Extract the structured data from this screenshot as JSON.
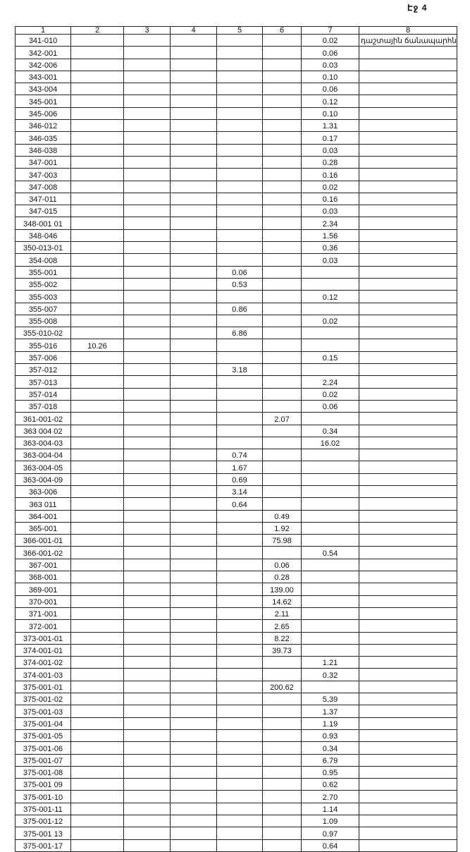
{
  "page_label": "Էջ 4",
  "table": {
    "headers": [
      "1",
      "2",
      "3",
      "4",
      "5",
      "6",
      "7",
      "8"
    ],
    "rows": [
      [
        "341-010",
        "",
        "",
        "",
        "",
        "",
        "0.02",
        "դաշտային ճանապարհն"
      ],
      [
        "342-001",
        "",
        "",
        "",
        "",
        "",
        "0.06",
        ""
      ],
      [
        "342-006",
        "",
        "",
        "",
        "",
        "",
        "0.03",
        ""
      ],
      [
        "343-001",
        "",
        "",
        "",
        "",
        "",
        "0.10",
        ""
      ],
      [
        "343-004",
        "",
        "",
        "",
        "",
        "",
        "0.06",
        ""
      ],
      [
        "345-001",
        "",
        "",
        "",
        "",
        "",
        "0.12",
        ""
      ],
      [
        "345-006",
        "",
        "",
        "",
        "",
        "",
        "0.10",
        ""
      ],
      [
        "346-012",
        "",
        "",
        "",
        "",
        "",
        "1.31",
        ""
      ],
      [
        "346-035",
        "",
        "",
        "",
        "",
        "",
        "0.17",
        ""
      ],
      [
        "346-038",
        "",
        "",
        "",
        "",
        "",
        "0.03",
        ""
      ],
      [
        "347-001",
        "",
        "",
        "",
        "",
        "",
        "0.28",
        ""
      ],
      [
        "347-003",
        "",
        "",
        "",
        "",
        "",
        "0.16",
        ""
      ],
      [
        "347-008",
        "",
        "",
        "",
        "",
        "",
        "0.02",
        ""
      ],
      [
        "347-011",
        "",
        "",
        "",
        "",
        "",
        "0.16",
        ""
      ],
      [
        "347-015",
        "",
        "",
        "",
        "",
        "",
        "0.03",
        ""
      ],
      [
        "348-001 01",
        "",
        "",
        "",
        "",
        "",
        "2.34",
        ""
      ],
      [
        "348-046",
        "",
        "",
        "",
        "",
        "",
        "1.56",
        ""
      ],
      [
        "350-013-01",
        "",
        "",
        "",
        "",
        "",
        "0.36",
        ""
      ],
      [
        "354-008",
        "",
        "",
        "",
        "",
        "",
        "0.03",
        ""
      ],
      [
        "355-001",
        "",
        "",
        "",
        "0.06",
        "",
        "",
        ""
      ],
      [
        "355-002",
        "",
        "",
        "",
        "0.53",
        "",
        "",
        ""
      ],
      [
        "355-003",
        "",
        "",
        "",
        "",
        "",
        "0.12",
        ""
      ],
      [
        "355-007",
        "",
        "",
        "",
        "0.86",
        "",
        "",
        ""
      ],
      [
        "355-008",
        "",
        "",
        "",
        "",
        "",
        "0.02",
        ""
      ],
      [
        "355-010-02",
        "",
        "",
        "",
        "6.86",
        "",
        "",
        ""
      ],
      [
        "355-016",
        "10.26",
        "",
        "",
        "",
        "",
        "",
        ""
      ],
      [
        "357-006",
        "",
        "",
        "",
        "",
        "",
        "0.15",
        ""
      ],
      [
        "357-012",
        "",
        "",
        "",
        "3.18",
        "",
        "",
        ""
      ],
      [
        "357-013",
        "",
        "",
        "",
        "",
        "",
        "2.24",
        ""
      ],
      [
        "357-014",
        "",
        "",
        "",
        "",
        "",
        "0.02",
        ""
      ],
      [
        "357-018",
        "",
        "",
        "",
        "",
        "",
        "0.06",
        ""
      ],
      [
        "361-001-02",
        "",
        "",
        "",
        "",
        "2.07",
        "",
        ""
      ],
      [
        "363 004 02",
        "",
        "",
        "",
        "",
        "",
        "0.34",
        ""
      ],
      [
        "363-004-03",
        "",
        "",
        "",
        "",
        "",
        "16.02",
        ""
      ],
      [
        "363-004-04",
        "",
        "",
        "",
        "0.74",
        "",
        "",
        ""
      ],
      [
        "363-004-05",
        "",
        "",
        "",
        "1.67",
        "",
        "",
        ""
      ],
      [
        "363-004-09",
        "",
        "",
        "",
        "0.69",
        "",
        "",
        ""
      ],
      [
        "363-006",
        "",
        "",
        "",
        "3.14",
        "",
        "",
        ""
      ],
      [
        "363 011",
        "",
        "",
        "",
        "0.64",
        "",
        "",
        ""
      ],
      [
        "364-001",
        "",
        "",
        "",
        "",
        "0.49",
        "",
        ""
      ],
      [
        "365-001",
        "",
        "",
        "",
        "",
        "1.92",
        "",
        ""
      ],
      [
        "366-001-01",
        "",
        "",
        "",
        "",
        "75.98",
        "",
        ""
      ],
      [
        "366-001-02",
        "",
        "",
        "",
        "",
        "",
        "0.54",
        ""
      ],
      [
        "367-001",
        "",
        "",
        "",
        "",
        "0.06",
        "",
        ""
      ],
      [
        "368-001",
        "",
        "",
        "",
        "",
        "0.28",
        "",
        ""
      ],
      [
        "369-001",
        "",
        "",
        "",
        "",
        "139.00",
        "",
        ""
      ],
      [
        "370-001",
        "",
        "",
        "",
        "",
        "14.62",
        "",
        ""
      ],
      [
        "371-001",
        "",
        "",
        "",
        "",
        "2.11",
        "",
        ""
      ],
      [
        "372-001",
        "",
        "",
        "",
        "",
        "2.65",
        "",
        ""
      ],
      [
        "373-001-01",
        "",
        "",
        "",
        "",
        "8.22",
        "",
        ""
      ],
      [
        "374-001-01",
        "",
        "",
        "",
        "",
        "39.73",
        "",
        ""
      ],
      [
        "374-001-02",
        "",
        "",
        "",
        "",
        "",
        "1.21",
        ""
      ],
      [
        "374-001-03",
        "",
        "",
        "",
        "",
        "",
        "0.32",
        ""
      ],
      [
        "375-001-01",
        "",
        "",
        "",
        "",
        "200.62",
        "",
        ""
      ],
      [
        "375-001-02",
        "",
        "",
        "",
        "",
        "",
        "5.39",
        ""
      ],
      [
        "375-001-03",
        "",
        "",
        "",
        "",
        "",
        "1.37",
        ""
      ],
      [
        "375-001-04",
        "",
        "",
        "",
        "",
        "",
        "1.19",
        ""
      ],
      [
        "375-001-05",
        "",
        "",
        "",
        "",
        "",
        "0.93",
        ""
      ],
      [
        "375-001-06",
        "",
        "",
        "",
        "",
        "",
        "0.34",
        ""
      ],
      [
        "375-001-07",
        "",
        "",
        "",
        "",
        "",
        "6.79",
        ""
      ],
      [
        "375-001-08",
        "",
        "",
        "",
        "",
        "",
        "0.95",
        ""
      ],
      [
        "375-001 09",
        "",
        "",
        "",
        "",
        "",
        "0.62",
        ""
      ],
      [
        "375-001-10",
        "",
        "",
        "",
        "",
        "",
        "2.70",
        ""
      ],
      [
        "375-001-11",
        "",
        "",
        "",
        "",
        "",
        "1.14",
        ""
      ],
      [
        "375-001-12",
        "",
        "",
        "",
        "",
        "",
        "1.09",
        ""
      ],
      [
        "375-001 13",
        "",
        "",
        "",
        "",
        "",
        "0.97",
        ""
      ],
      [
        "375-001-17",
        "",
        "",
        "",
        "",
        "",
        "0.64",
        ""
      ]
    ]
  }
}
